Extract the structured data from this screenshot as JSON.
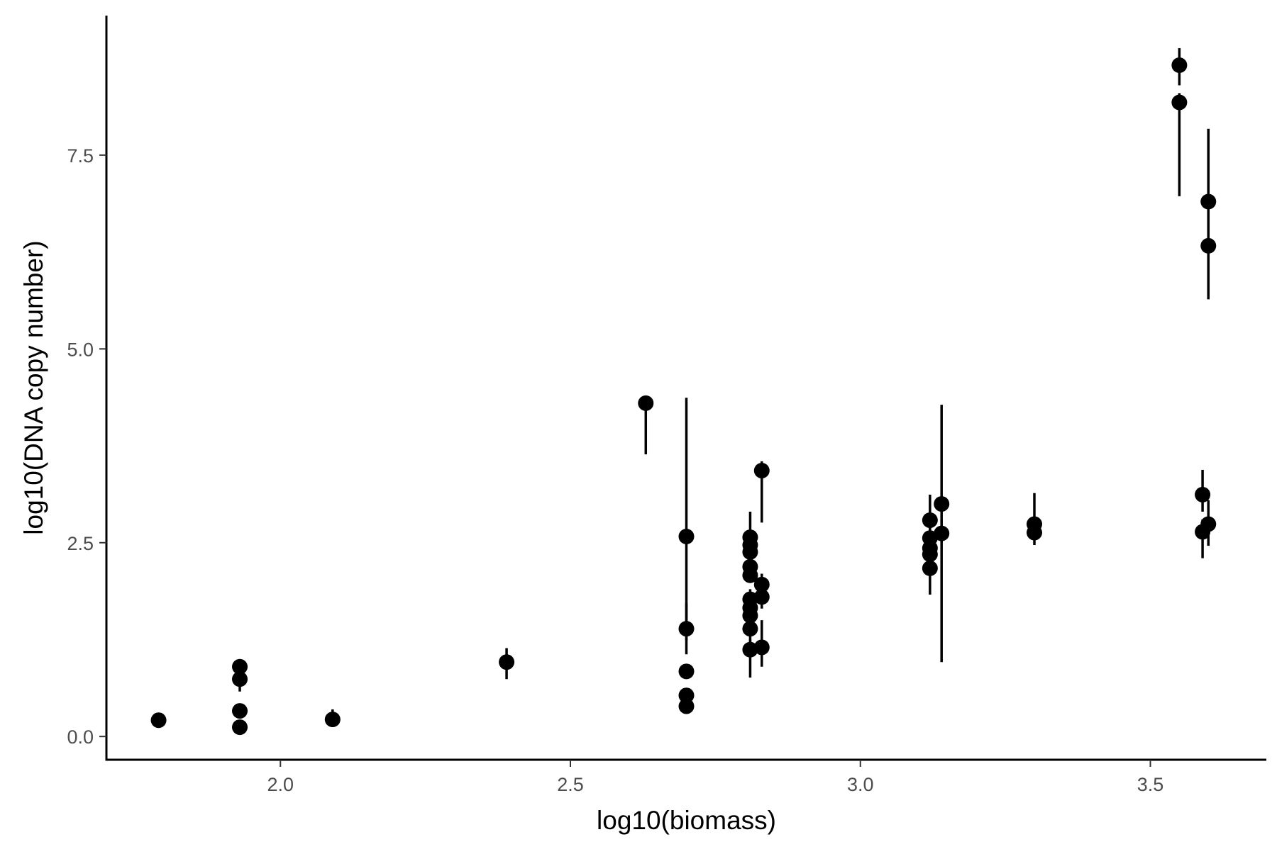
{
  "chart_data": {
    "type": "scatter",
    "title": "",
    "xlabel": "log10(biomass)",
    "ylabel": "log10(DNA copy number)",
    "xlim": [
      1.7,
      3.7
    ],
    "ylim": [
      -0.3,
      9.3
    ],
    "xticks": [
      2.0,
      2.5,
      3.0,
      3.5
    ],
    "xtick_labels": [
      "2.0",
      "2.5",
      "3.0",
      "3.5"
    ],
    "yticks": [
      0.0,
      2.5,
      5.0,
      7.5
    ],
    "ytick_labels": [
      "0.0",
      "2.5",
      "5.0",
      "7.5"
    ],
    "grid": false,
    "error_bars": "vertical",
    "colors": {
      "points": "#000000",
      "axis": "#000000",
      "tick_label": "#4d4d4d"
    },
    "points": [
      {
        "x": 1.79,
        "y": 0.21
      },
      {
        "x": 1.93,
        "y": 0.9,
        "ylo": 0.85,
        "yhi": 0.98
      },
      {
        "x": 1.93,
        "y": 0.74,
        "ylo": 0.58,
        "yhi": 0.8
      },
      {
        "x": 1.93,
        "y": 0.33
      },
      {
        "x": 1.93,
        "y": 0.12
      },
      {
        "x": 2.09,
        "y": 0.22,
        "ylo": 0.2,
        "yhi": 0.35
      },
      {
        "x": 2.39,
        "y": 0.96,
        "ylo": 0.74,
        "yhi": 1.14
      },
      {
        "x": 2.63,
        "y": 4.3,
        "ylo": 3.64,
        "yhi": 4.3
      },
      {
        "x": 2.7,
        "y": 2.58,
        "ylo": 1.06,
        "yhi": 4.37
      },
      {
        "x": 2.7,
        "y": 1.39,
        "ylo": 1.24,
        "yhi": 1.72
      },
      {
        "x": 2.7,
        "y": 0.84
      },
      {
        "x": 2.7,
        "y": 0.53
      },
      {
        "x": 2.7,
        "y": 0.39
      },
      {
        "x": 2.81,
        "y": 2.57,
        "ylo": 2.4,
        "yhi": 2.9
      },
      {
        "x": 2.81,
        "y": 2.47
      },
      {
        "x": 2.81,
        "y": 2.38
      },
      {
        "x": 2.81,
        "y": 2.19,
        "ylo": 2.0,
        "yhi": 2.3
      },
      {
        "x": 2.81,
        "y": 2.08
      },
      {
        "x": 2.81,
        "y": 1.77,
        "ylo": 1.6,
        "yhi": 1.9
      },
      {
        "x": 2.81,
        "y": 1.66
      },
      {
        "x": 2.81,
        "y": 1.56
      },
      {
        "x": 2.81,
        "y": 1.39,
        "ylo": 1.2,
        "yhi": 1.5
      },
      {
        "x": 2.81,
        "y": 1.12,
        "ylo": 0.76,
        "yhi": 1.25
      },
      {
        "x": 2.83,
        "y": 3.43,
        "ylo": 2.76,
        "yhi": 3.55
      },
      {
        "x": 2.83,
        "y": 1.96,
        "ylo": 1.65,
        "yhi": 2.1
      },
      {
        "x": 2.83,
        "y": 1.8,
        "ylo": 1.7,
        "yhi": 1.92
      },
      {
        "x": 2.83,
        "y": 1.15,
        "ylo": 0.9,
        "yhi": 1.5
      },
      {
        "x": 3.12,
        "y": 2.79,
        "ylo": 2.6,
        "yhi": 3.12
      },
      {
        "x": 3.12,
        "y": 2.56,
        "ylo": 2.4,
        "yhi": 2.7
      },
      {
        "x": 3.12,
        "y": 2.43
      },
      {
        "x": 3.12,
        "y": 2.35
      },
      {
        "x": 3.12,
        "y": 2.17,
        "ylo": 1.83,
        "yhi": 2.3
      },
      {
        "x": 3.14,
        "y": 3.0,
        "ylo": 2.5,
        "yhi": 4.28
      },
      {
        "x": 3.14,
        "y": 2.62,
        "ylo": 0.96,
        "yhi": 2.8
      },
      {
        "x": 3.3,
        "y": 2.74,
        "ylo": 2.6,
        "yhi": 3.14
      },
      {
        "x": 3.3,
        "y": 2.63,
        "ylo": 2.47,
        "yhi": 2.7
      },
      {
        "x": 3.55,
        "y": 8.66,
        "ylo": 8.4,
        "yhi": 8.88
      },
      {
        "x": 3.55,
        "y": 8.18,
        "ylo": 6.97,
        "yhi": 8.3
      },
      {
        "x": 3.6,
        "y": 6.9,
        "ylo": 5.64,
        "yhi": 7.84
      },
      {
        "x": 3.6,
        "y": 6.33,
        "ylo": 5.87,
        "yhi": 6.8
      },
      {
        "x": 3.59,
        "y": 3.12,
        "ylo": 2.9,
        "yhi": 3.44
      },
      {
        "x": 3.59,
        "y": 2.64,
        "ylo": 2.3,
        "yhi": 2.8
      },
      {
        "x": 3.6,
        "y": 2.74,
        "ylo": 2.46,
        "yhi": 3.05
      }
    ]
  }
}
